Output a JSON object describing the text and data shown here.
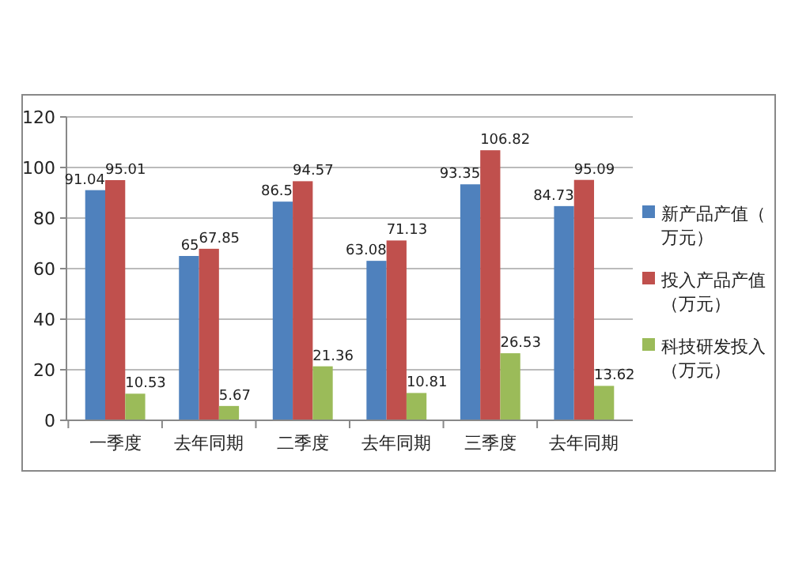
{
  "chart_data": {
    "type": "bar",
    "categories": [
      "一季度",
      "去年同期",
      "二季度",
      "去年同期",
      "三季度",
      "去年同期"
    ],
    "series": [
      {
        "name": "新产品产值（万元）",
        "color": "#4f81bd",
        "values": [
          91.04,
          65,
          86.5,
          63.08,
          93.35,
          84.73
        ]
      },
      {
        "name": "投入产品产值（万元）",
        "color": "#c0504d",
        "values": [
          95.01,
          67.85,
          94.57,
          71.13,
          106.82,
          95.09
        ]
      },
      {
        "name": "科技研发投入（万元）",
        "color": "#9bbb59",
        "values": [
          10.53,
          5.67,
          21.36,
          10.81,
          26.53,
          13.62
        ]
      }
    ],
    "ylim": [
      0,
      120
    ],
    "yticks": [
      0,
      20,
      40,
      60,
      80,
      100,
      120
    ],
    "grid": "y",
    "legend": "right",
    "data_labels": true
  }
}
